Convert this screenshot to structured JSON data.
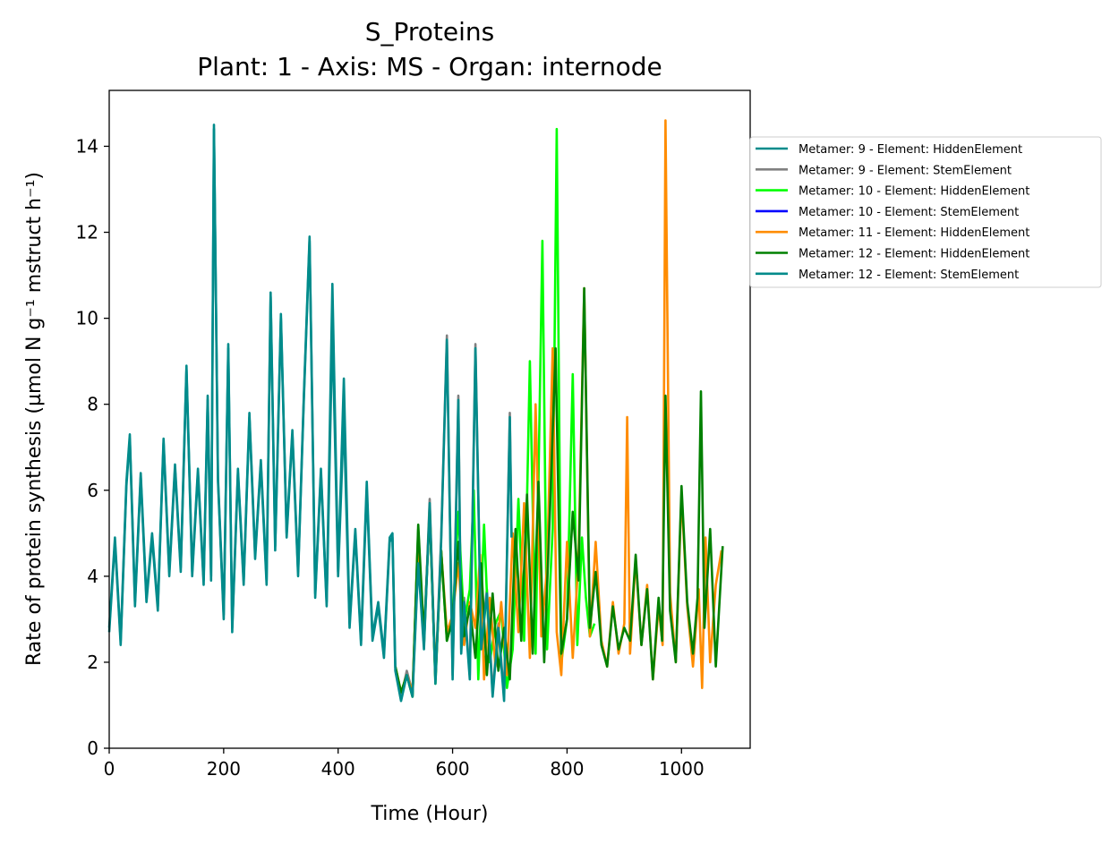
{
  "chart_data": {
    "type": "line",
    "title": "S_Proteins",
    "subtitle": "Plant: 1 - Axis: MS - Organ: internode",
    "xlabel": "Time (Hour)",
    "ylabel": "Rate of protein synthesis (µmol N g⁻¹ mstruct h⁻¹)",
    "xlim": [
      0,
      1120
    ],
    "ylim": [
      0,
      15.3
    ],
    "xticks": [
      0,
      200,
      400,
      600,
      800,
      1000
    ],
    "yticks": [
      0,
      2,
      4,
      6,
      8,
      10,
      12,
      14
    ],
    "grid": false,
    "legend_position": "outside-right",
    "series": [
      {
        "name": "Metamer: 9 - Element: HiddenElement",
        "color": "#008b8b",
        "x": [
          0,
          10,
          20,
          30,
          36,
          45,
          55,
          65,
          75,
          85,
          95,
          105,
          115,
          125,
          135,
          145,
          155,
          165,
          172,
          178,
          183,
          190,
          200,
          208,
          215,
          225,
          235,
          245,
          255,
          265,
          275,
          282,
          290,
          300,
          310,
          320,
          330,
          340,
          350,
          360,
          370,
          380,
          390,
          400,
          410,
          420,
          430,
          440,
          450,
          460,
          470,
          480,
          490,
          495,
          500
        ],
        "y": [
          2.8,
          4.9,
          2.5,
          6.2,
          7.3,
          3.4,
          6.4,
          3.5,
          5.0,
          3.3,
          7.2,
          4.1,
          6.6,
          4.2,
          8.9,
          4.1,
          6.5,
          3.9,
          8.2,
          4.0,
          14.5,
          6.3,
          3.1,
          9.4,
          2.8,
          6.5,
          3.9,
          7.8,
          4.5,
          6.7,
          3.9,
          10.6,
          4.7,
          10.1,
          5.0,
          7.4,
          4.1,
          8.2,
          11.9,
          3.6,
          6.5,
          3.4,
          10.8,
          4.1,
          8.6,
          2.9,
          5.1,
          2.5,
          6.2,
          2.6,
          3.4,
          2.2,
          4.9,
          5.0,
          1.9
        ]
      },
      {
        "name": "Metamer: 9 - Element: StemElement",
        "color": "#808080",
        "x": [
          500,
          510,
          520,
          530,
          540,
          550,
          560,
          570,
          580,
          590,
          600,
          610,
          615,
          620,
          630,
          640,
          650,
          660,
          670,
          680,
          690,
          700,
          703
        ],
        "y": [
          1.9,
          1.2,
          1.8,
          1.3,
          4.4,
          2.4,
          5.8,
          1.6,
          4.9,
          9.6,
          1.7,
          8.2,
          2.3,
          3.5,
          1.7,
          9.4,
          2.4,
          3.7,
          1.3,
          2.9,
          1.2,
          7.8,
          5.0
        ]
      },
      {
        "name": "Metamer: 10 - Element: HiddenElement",
        "color": "#00ff00",
        "x": [
          500,
          510,
          520,
          530,
          540,
          550,
          560,
          570,
          580,
          590,
          600,
          610,
          620,
          630,
          637,
          645,
          655,
          665,
          675,
          685,
          695,
          705,
          715,
          725,
          735,
          745,
          757,
          765,
          775,
          782,
          790,
          800,
          810,
          818,
          826,
          833,
          840,
          848
        ],
        "y": [
          1.9,
          1.3,
          1.7,
          1.2,
          5.1,
          2.4,
          5.6,
          1.5,
          4.6,
          2.5,
          3.0,
          5.5,
          2.9,
          3.7,
          6.0,
          1.6,
          5.2,
          2.0,
          2.9,
          3.2,
          1.4,
          2.3,
          5.8,
          2.5,
          9.0,
          2.2,
          11.8,
          2.3,
          5.1,
          14.4,
          2.0,
          3.0,
          8.7,
          2.4,
          4.9,
          3.5,
          2.6,
          2.9
        ]
      },
      {
        "name": "Metamer: 10 - Element: StemElement",
        "color": "#0000ff",
        "x": [],
        "y": []
      },
      {
        "name": "Metamer: 11 - Element: HiddenElement",
        "color": "#ff8c00",
        "x": [
          500,
          510,
          520,
          530,
          540,
          550,
          560,
          570,
          580,
          590,
          600,
          610,
          620,
          630,
          640,
          648,
          655,
          665,
          675,
          685,
          695,
          705,
          715,
          725,
          735,
          745,
          755,
          765,
          775,
          782,
          790,
          800,
          810,
          820,
          830,
          840,
          850,
          860,
          870,
          880,
          890,
          900,
          905,
          910,
          920,
          930,
          940,
          950,
          960,
          967,
          972,
          980,
          990,
          1000,
          1010,
          1020,
          1030,
          1036,
          1042,
          1050,
          1060,
          1070
        ],
        "y": [
          1.9,
          1.3,
          1.7,
          1.3,
          5.0,
          2.5,
          5.6,
          1.6,
          4.6,
          2.7,
          3.1,
          4.3,
          2.4,
          3.4,
          2.8,
          4.5,
          1.6,
          3.5,
          1.9,
          3.4,
          1.7,
          5.0,
          2.7,
          5.7,
          2.1,
          8.0,
          2.6,
          4.2,
          9.3,
          2.7,
          1.7,
          4.8,
          2.1,
          4.4,
          10.7,
          2.6,
          4.8,
          2.5,
          1.9,
          3.4,
          2.2,
          2.9,
          7.7,
          2.2,
          4.4,
          2.4,
          3.8,
          1.6,
          3.3,
          2.4,
          14.6,
          3.6,
          2.0,
          5.9,
          3.3,
          1.9,
          3.7,
          1.4,
          4.9,
          2.0,
          3.8,
          4.6
        ]
      },
      {
        "name": "Metamer: 12 - Element: HiddenElement",
        "color": "#008000",
        "x": [
          500,
          510,
          520,
          530,
          540,
          550,
          560,
          570,
          580,
          590,
          600,
          610,
          620,
          630,
          640,
          650,
          660,
          670,
          680,
          690,
          700,
          710,
          720,
          730,
          740,
          750,
          760,
          770,
          780,
          790,
          800,
          810,
          820,
          830,
          840,
          850,
          860,
          870,
          880,
          890,
          900,
          910,
          920,
          930,
          940,
          950,
          960,
          966,
          972,
          980,
          990,
          1000,
          1010,
          1020,
          1028,
          1034,
          1040,
          1050,
          1060,
          1072
        ],
        "y": [
          1.9,
          1.3,
          1.7,
          1.2,
          5.2,
          2.6,
          5.5,
          1.6,
          4.6,
          2.5,
          3.0,
          4.8,
          2.6,
          3.3,
          2.1,
          4.3,
          1.7,
          3.6,
          1.8,
          2.8,
          1.6,
          5.1,
          2.5,
          5.9,
          2.2,
          6.2,
          2.0,
          5.5,
          9.3,
          2.2,
          3.0,
          5.5,
          3.9,
          10.7,
          2.8,
          4.1,
          2.4,
          1.9,
          3.3,
          2.3,
          2.8,
          2.5,
          4.5,
          2.4,
          3.7,
          1.6,
          3.5,
          2.5,
          8.2,
          3.2,
          2.0,
          6.1,
          3.4,
          2.2,
          3.5,
          8.3,
          2.8,
          5.1,
          1.9,
          4.7
        ]
      },
      {
        "name": "Metamer: 12 - Element: StemElement",
        "color": "#008b8b",
        "x": [
          0,
          10,
          20,
          30,
          36,
          45,
          55,
          65,
          75,
          85,
          95,
          105,
          115,
          125,
          135,
          145,
          155,
          165,
          172,
          178,
          183,
          190,
          200,
          208,
          215,
          225,
          235,
          245,
          255,
          265,
          275,
          282,
          290,
          300,
          310,
          320,
          330,
          340,
          350,
          360,
          370,
          380,
          390,
          400,
          410,
          420,
          430,
          440,
          450,
          460,
          470,
          480,
          490,
          495,
          500,
          510,
          520,
          530,
          540,
          550,
          560,
          570,
          580,
          590,
          600,
          610,
          615,
          620,
          630,
          640,
          650,
          660,
          670,
          680,
          690,
          700,
          703
        ],
        "y": [
          2.7,
          4.8,
          2.4,
          6.1,
          7.2,
          3.3,
          6.3,
          3.4,
          4.9,
          3.2,
          7.1,
          4.0,
          6.5,
          4.1,
          8.8,
          4.0,
          6.4,
          3.8,
          8.1,
          3.9,
          14.4,
          6.2,
          3.0,
          9.3,
          2.7,
          6.4,
          3.8,
          7.7,
          4.4,
          6.6,
          3.8,
          10.5,
          4.6,
          10.0,
          4.9,
          7.3,
          4.0,
          8.1,
          11.8,
          3.5,
          6.4,
          3.3,
          9.8,
          4.0,
          7.7,
          2.8,
          5.0,
          2.4,
          6.0,
          2.5,
          3.3,
          2.1,
          4.8,
          4.9,
          1.8,
          1.1,
          1.7,
          1.2,
          4.3,
          2.3,
          5.7,
          1.5,
          4.8,
          9.5,
          1.6,
          8.1,
          2.2,
          3.4,
          1.6,
          9.3,
          2.3,
          3.6,
          1.2,
          2.8,
          1.1,
          7.7,
          4.9
        ]
      }
    ]
  }
}
